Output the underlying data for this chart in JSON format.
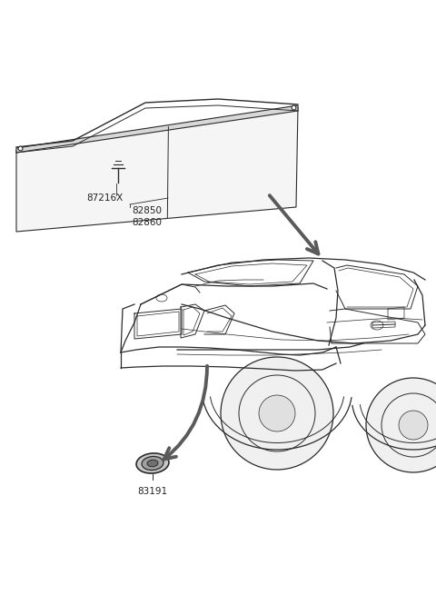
{
  "bg_color": "#ffffff",
  "fig_width": 4.8,
  "fig_height": 6.55,
  "dpi": 100,
  "label_87216X": "87216X",
  "label_82850": "82850",
  "label_82860": "82860",
  "label_83191": "83191",
  "line_color": "#2a2a2a",
  "arrow_color": "#555555",
  "text_color": "#222222"
}
